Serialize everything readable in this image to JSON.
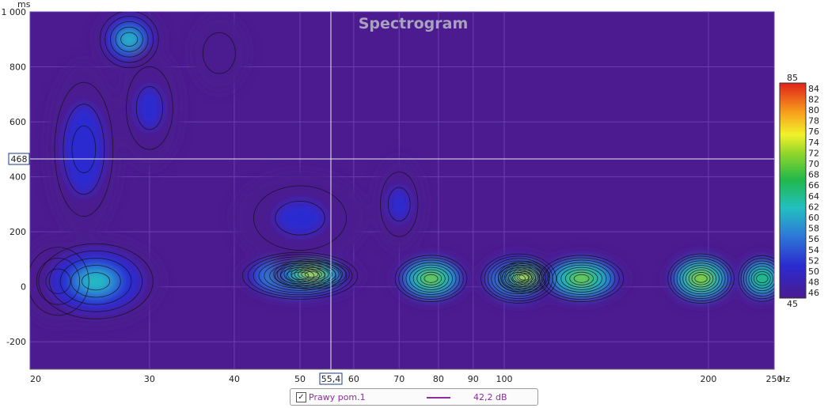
{
  "chart_data": {
    "type": "heatmap",
    "title": "Spectrogram",
    "x_unit": "Hz",
    "y_unit": "ms",
    "x_scale": "log",
    "xlim": [
      20,
      250
    ],
    "ylim": [
      -300,
      1000
    ],
    "x_ticks": [
      "20",
      "30",
      "40",
      "50",
      "60",
      "70",
      "80",
      "90",
      "100",
      "200",
      "250"
    ],
    "y_ticks": [
      "1 000",
      "800",
      "600",
      "400",
      "200",
      "0",
      "-200"
    ],
    "cursor": {
      "x": "55,4",
      "y": "468"
    },
    "colorbar": {
      "min": 45,
      "max": 85,
      "labels": [
        "85",
        "84",
        "82",
        "80",
        "78",
        "76",
        "74",
        "72",
        "70",
        "68",
        "66",
        "64",
        "62",
        "60",
        "58",
        "56",
        "54",
        "52",
        "50",
        "48",
        "46",
        "45"
      ]
    },
    "background_color": "#4b1b8f",
    "blobs": [
      {
        "x": 22,
        "y": 20,
        "rx": 2,
        "ry": 140,
        "level": 55
      },
      {
        "x": 25,
        "y": 20,
        "rx": 5,
        "ry": 140,
        "level": 61
      },
      {
        "x": 50,
        "y": 40,
        "rx": 9,
        "ry": 70,
        "level": 74
      },
      {
        "x": 52,
        "y": 45,
        "rx": 5,
        "ry": 35,
        "level": 76
      },
      {
        "x": 78,
        "y": 30,
        "rx": 7,
        "ry": 70,
        "level": 72
      },
      {
        "x": 105,
        "y": 30,
        "rx": 10,
        "ry": 75,
        "level": 76
      },
      {
        "x": 107,
        "y": 35,
        "rx": 5,
        "ry": 40,
        "level": 78
      },
      {
        "x": 130,
        "y": 30,
        "rx": 15,
        "ry": 70,
        "level": 72
      },
      {
        "x": 195,
        "y": 30,
        "rx": 15,
        "ry": 75,
        "level": 75
      },
      {
        "x": 240,
        "y": 30,
        "rx": 10,
        "ry": 70,
        "level": 70
      },
      {
        "x": 24,
        "y": 500,
        "rx": 2,
        "ry": 300,
        "level": 55
      },
      {
        "x": 28,
        "y": 900,
        "rx": 2,
        "ry": 100,
        "level": 61
      },
      {
        "x": 30,
        "y": 650,
        "rx": 2,
        "ry": 200,
        "level": 52
      },
      {
        "x": 38,
        "y": 850,
        "rx": 2,
        "ry": 120,
        "level": 48
      },
      {
        "x": 50,
        "y": 250,
        "rx": 10,
        "ry": 150,
        "level": 50
      },
      {
        "x": 70,
        "y": 300,
        "rx": 3,
        "ry": 150,
        "level": 50
      }
    ]
  },
  "legend": {
    "checkbox_mark": "✓",
    "series_name": "Prawy pom.1",
    "value": "42,2 dB",
    "line_color": "#8a2f9b"
  }
}
